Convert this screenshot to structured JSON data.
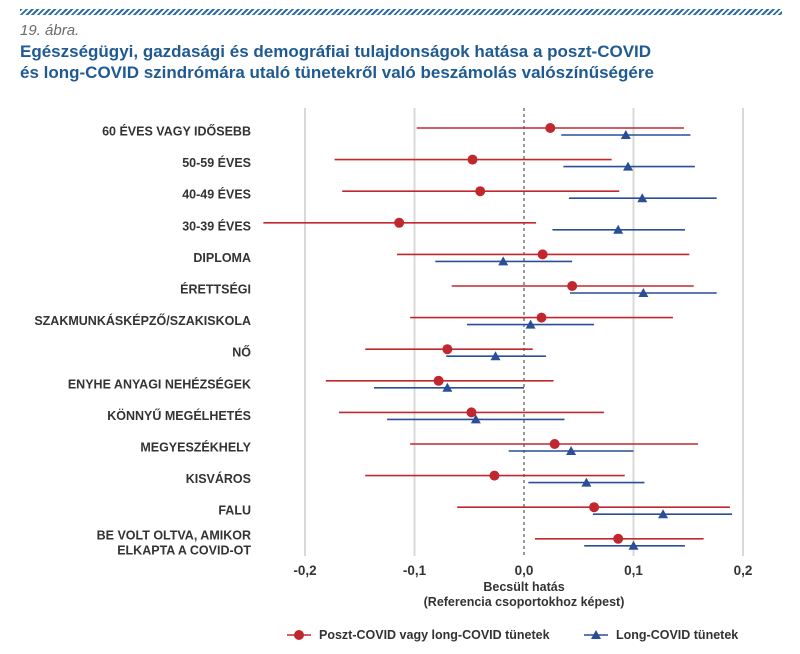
{
  "figure_number": "19. ábra.",
  "title_line1": "Egészségügyi, gazdasági és demográfiai tulajdonságok hatása a poszt-COVID",
  "title_line2": "és long-COVID szindrómára utaló tünetekről való beszámolás valószínűségére",
  "colors": {
    "series1": "#c0282e",
    "series2": "#2a4f96",
    "grid": "#d9d9d9",
    "zero": "#333333"
  },
  "chart_data": {
    "type": "forest-plot",
    "xlabel_line1": "Becsült hatás",
    "xlabel_line2": "(Referencia csoportokhoz képest)",
    "xlim": [
      -0.24,
      0.2
    ],
    "xticks": [
      -0.2,
      -0.1,
      0.0,
      0.1,
      0.2
    ],
    "xtick_labels": [
      "-0,2",
      "-0,1",
      "0,0",
      "0,1",
      "0,2"
    ],
    "grid": "vertical",
    "legend_position": "bottom",
    "categories": [
      [
        "60 ÉVES VAGY IDŐSEBB"
      ],
      [
        "50-59 ÉVES"
      ],
      [
        "40-49 ÉVES"
      ],
      [
        "30-39 ÉVES"
      ],
      [
        "DIPLOMA"
      ],
      [
        "ÉRETTSÉGI"
      ],
      [
        "SZAKMUNKÁSKÉPZŐ/SZAKISKOLA"
      ],
      [
        "NŐ"
      ],
      [
        "ENYHE ANYAGI NEHÉZSÉGEK"
      ],
      [
        "KÖNNYŰ MEGÉLHETÉS"
      ],
      [
        "MEGYESZÉKHELY"
      ],
      [
        "KISVÁROS"
      ],
      [
        "FALU"
      ],
      [
        "BE VOLT OLTVA, AMIKOR",
        "ELKAPTA A COVID-OT"
      ]
    ],
    "series": [
      {
        "name": "Poszt-COVID vagy long-COVID tünetek",
        "marker": "circle",
        "estimate": [
          0.024,
          -0.047,
          -0.04,
          -0.114,
          0.017,
          0.044,
          0.016,
          -0.07,
          -0.078,
          -0.048,
          0.028,
          -0.027,
          0.064,
          0.086
        ],
        "lower": [
          -0.098,
          -0.173,
          -0.166,
          -0.238,
          -0.116,
          -0.066,
          -0.104,
          -0.145,
          -0.181,
          -0.169,
          -0.104,
          -0.145,
          -0.061,
          0.01
        ],
        "upper": [
          0.146,
          0.08,
          0.087,
          0.011,
          0.151,
          0.155,
          0.136,
          0.008,
          0.027,
          0.073,
          0.159,
          0.092,
          0.188,
          0.164
        ]
      },
      {
        "name": "Long-COVID tünetek",
        "marker": "triangle",
        "estimate": [
          0.093,
          0.095,
          0.108,
          0.086,
          -0.019,
          0.109,
          0.006,
          -0.026,
          -0.07,
          -0.044,
          0.043,
          0.057,
          0.127,
          0.1
        ],
        "lower": [
          0.034,
          0.036,
          0.041,
          0.026,
          -0.081,
          0.042,
          -0.052,
          -0.071,
          -0.137,
          -0.125,
          -0.014,
          0.004,
          0.063,
          0.055
        ],
        "upper": [
          0.152,
          0.156,
          0.176,
          0.147,
          0.044,
          0.176,
          0.064,
          0.02,
          0.0,
          0.037,
          0.1,
          0.11,
          0.19,
          0.147
        ]
      }
    ]
  }
}
